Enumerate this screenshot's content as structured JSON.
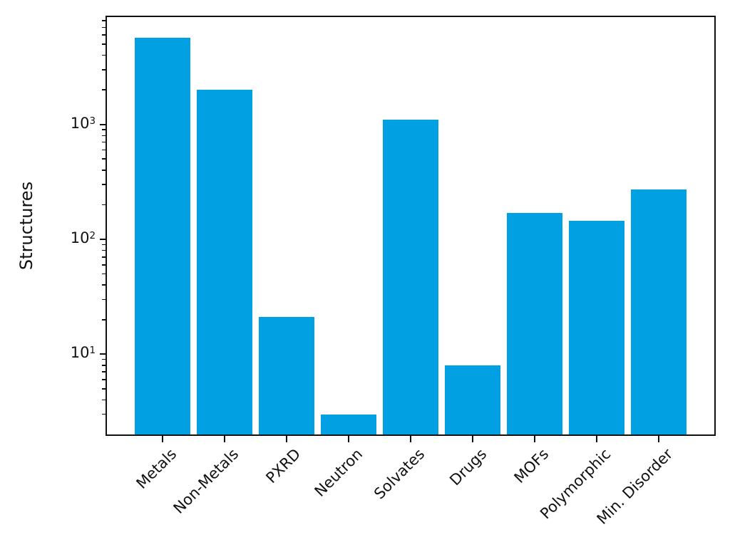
{
  "figure": {
    "background": "#ffffff",
    "axes_edge_color": "#111111"
  },
  "chart_data": {
    "type": "bar",
    "title": "",
    "xlabel": "",
    "ylabel": "Structures",
    "categories": [
      "Metals",
      "Non-Metals",
      "PXRD",
      "Neutron",
      "Solvates",
      "Drugs",
      "MOFs",
      "Polymorphic",
      "Min. Disorder"
    ],
    "values": [
      5700,
      2000,
      21,
      3,
      1100,
      8,
      170,
      145,
      270
    ],
    "bar_color": "#00A0E3",
    "yscale": "log",
    "ylim": [
      2.0,
      8600
    ],
    "yticks": [
      10,
      100,
      1000
    ],
    "ytick_labels": [
      "10^1",
      "10^2",
      "10^3"
    ],
    "xtick_rotation_deg": 45,
    "grid": false,
    "legend": "none"
  }
}
